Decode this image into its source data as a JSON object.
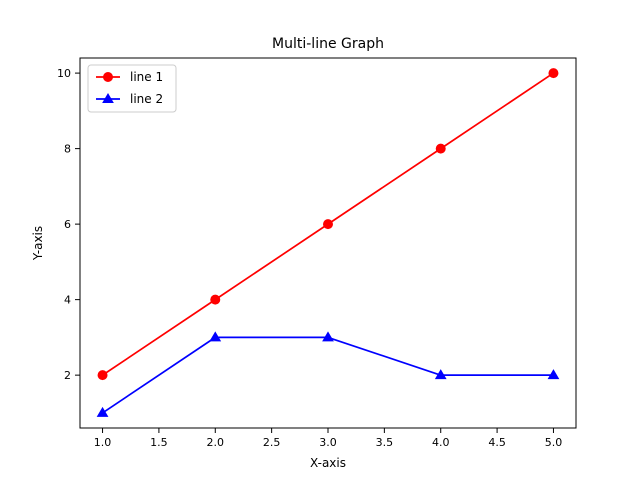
{
  "chart_data": {
    "type": "line",
    "title": "Multi-line Graph",
    "xlabel": "X-axis",
    "ylabel": "Y-axis",
    "xlim": [
      0.8,
      5.2
    ],
    "ylim": [
      0.6,
      10.4
    ],
    "xticks": [
      1.0,
      1.5,
      2.0,
      2.5,
      3.0,
      3.5,
      4.0,
      4.5,
      5.0
    ],
    "xtick_labels": [
      "1.0",
      "1.5",
      "2.0",
      "2.5",
      "3.0",
      "3.5",
      "4.0",
      "4.5",
      "5.0"
    ],
    "yticks": [
      2,
      4,
      6,
      8,
      10
    ],
    "ytick_labels": [
      "2",
      "4",
      "6",
      "8",
      "10"
    ],
    "grid": false,
    "legend_position": "top-left",
    "series": [
      {
        "name": "line 1",
        "x": [
          1,
          2,
          3,
          4,
          5
        ],
        "y": [
          2,
          4,
          6,
          8,
          10
        ],
        "color": "#ff0000",
        "marker": "circle"
      },
      {
        "name": "line 2",
        "x": [
          1,
          2,
          3,
          4,
          5
        ],
        "y": [
          1,
          3,
          3,
          2,
          2
        ],
        "color": "#0000ff",
        "marker": "triangle"
      }
    ]
  }
}
